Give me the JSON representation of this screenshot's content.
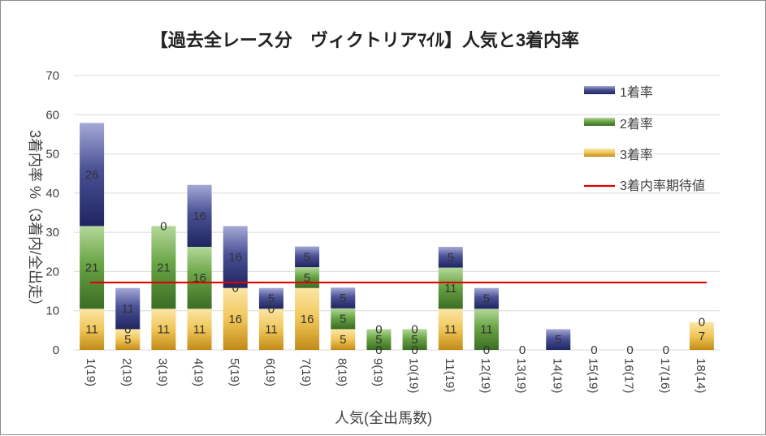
{
  "chart_data": {
    "type": "bar",
    "stacked": true,
    "title": "【過去全レース分　ヴィクトリアﾏｲﾙ】人気と3着内率",
    "xlabel": "人気(全出馬数)",
    "ylabel": "3着内率 %（3着内/全出走）",
    "ylim": [
      0,
      70
    ],
    "yticks": [
      0,
      10,
      20,
      30,
      40,
      50,
      60,
      70
    ],
    "grid": true,
    "legend_position": "right",
    "categories": [
      "1(19)",
      "2(19)",
      "3(19)",
      "4(19)",
      "5(19)",
      "6(19)",
      "7(19)",
      "8(19)",
      "9(19)",
      "10(19)",
      "11(19)",
      "12(19)",
      "13(19)",
      "14(19)",
      "15(19)",
      "16(17)",
      "17(16)",
      "18(14)"
    ],
    "series": [
      {
        "name": "3着率",
        "color": "#e8b33a",
        "values": [
          10.5,
          5.3,
          10.5,
          10.5,
          15.8,
          10.5,
          15.8,
          5.3,
          0,
          0,
          10.5,
          0,
          0,
          0,
          0,
          0,
          0,
          7.1
        ],
        "labels": [
          "11",
          "5",
          "11",
          "11",
          "16",
          "11",
          "16",
          "5",
          "0",
          "0",
          "11",
          "0",
          "",
          "",
          "",
          "",
          "",
          "7"
        ]
      },
      {
        "name": "2着率",
        "color": "#5f9b3c",
        "values": [
          21.1,
          0,
          21.1,
          15.8,
          0,
          0,
          5.3,
          5.3,
          5.3,
          5.3,
          10.5,
          10.5,
          0,
          0,
          0,
          0,
          0,
          0
        ],
        "labels": [
          "21",
          "0",
          "21",
          "16",
          "0",
          "0",
          "5",
          "5",
          "5",
          "5",
          "11",
          "11",
          "",
          "",
          "",
          "",
          "",
          "0"
        ]
      },
      {
        "name": "1着率",
        "color": "#3c4487",
        "values": [
          26.3,
          10.5,
          0,
          15.8,
          15.8,
          5.3,
          5.3,
          5.3,
          0,
          0,
          5.3,
          5.3,
          0,
          5.3,
          0,
          0,
          0,
          0
        ],
        "labels": [
          "26",
          "11",
          "0",
          "16",
          "16",
          "5",
          "5",
          "5",
          "0",
          "0",
          "5",
          "5",
          "0",
          "5",
          "0",
          "0",
          "0",
          ""
        ]
      }
    ],
    "reference_line": {
      "name": "3着内率期待値",
      "value": 17.2,
      "color": "#e00000"
    }
  }
}
